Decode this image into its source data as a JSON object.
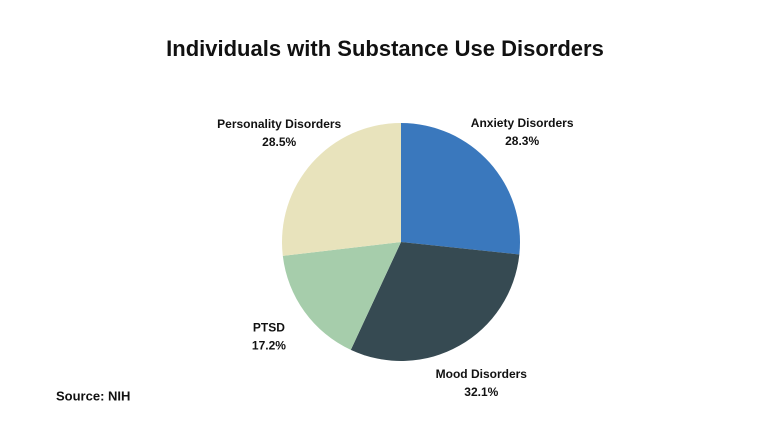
{
  "chart_data": {
    "type": "pie",
    "title": "Individuals with Substance Use Disorders",
    "categories": [
      "Anxiety Disorders",
      "Mood Disorders",
      "PTSD",
      "Personality Disorders"
    ],
    "values": [
      28.3,
      32.1,
      17.2,
      28.5
    ],
    "value_labels": [
      "28.3%",
      "32.1%",
      "17.2%",
      "28.5%"
    ],
    "colors": [
      "#3a78bd",
      "#364a52",
      "#a6cdab",
      "#e8e3bc"
    ],
    "source": "Source: NIH"
  }
}
